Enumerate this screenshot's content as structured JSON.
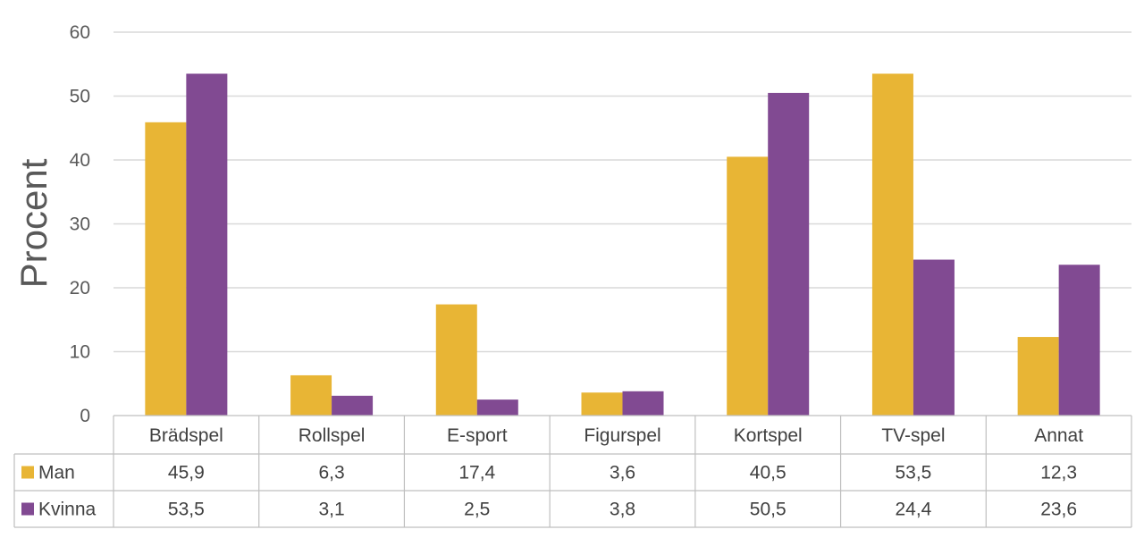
{
  "chart_data": {
    "type": "bar",
    "title": "",
    "xlabel": "",
    "ylabel": "Procent",
    "ylim": [
      0,
      60
    ],
    "yticks": [
      0,
      10,
      20,
      30,
      40,
      50,
      60
    ],
    "grid": true,
    "legend": "data-table-left",
    "categories": [
      "Brädspel",
      "Rollspel",
      "E-sport",
      "Figurspel",
      "Kortspel",
      "TV-spel",
      "Annat"
    ],
    "series": [
      {
        "name": "Man",
        "color": "#E8B535",
        "values": [
          45.9,
          6.3,
          17.4,
          3.6,
          40.5,
          53.5,
          12.3
        ],
        "labels": [
          "45,9",
          "6,3",
          "17,4",
          "3,6",
          "40,5",
          "53,5",
          "12,3"
        ]
      },
      {
        "name": "Kvinna",
        "color": "#814A92",
        "values": [
          53.5,
          3.1,
          2.5,
          3.8,
          50.5,
          24.4,
          23.6
        ],
        "labels": [
          "53,5",
          "3,1",
          "2,5",
          "3,8",
          "50,5",
          "24,4",
          "23,6"
        ]
      }
    ]
  }
}
